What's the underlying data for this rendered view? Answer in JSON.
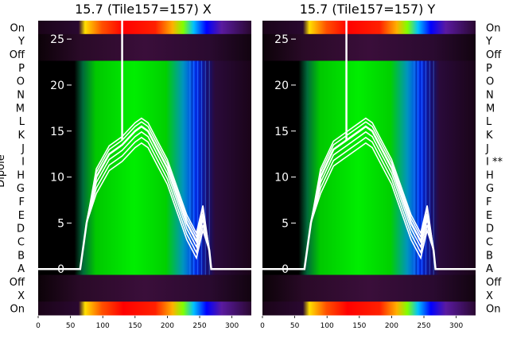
{
  "ylabel": "Dipole",
  "chart_data": [
    {
      "type": "heatmap",
      "title": "15.7 (Tile157=157) X",
      "row_labels": [
        "On",
        "Y",
        "Off",
        "P",
        "O",
        "N",
        "M",
        "L",
        "K",
        "J",
        "I",
        "H",
        "G",
        "F",
        "E",
        "D",
        "C",
        "B",
        "A",
        "Off",
        "X",
        "On"
      ],
      "xlim": [
        0,
        330
      ],
      "x_ticks": [
        0,
        50,
        100,
        150,
        200,
        250,
        300
      ],
      "ylim": [
        -5,
        27
      ],
      "y_ticks": [
        0,
        5,
        10,
        15,
        20,
        25
      ],
      "colormap": [
        "#000000",
        "#4b0082",
        "#0000ff",
        "#00ff00",
        "#ffff00",
        "#ff0000"
      ],
      "line_color": "#ffffff",
      "line_x": [
        0,
        65,
        75,
        90,
        110,
        130,
        150,
        160,
        170,
        185,
        200,
        215,
        230,
        245,
        255,
        265,
        268,
        330
      ],
      "line_y": [
        0,
        0,
        5,
        10,
        12.5,
        13.5,
        15,
        15.5,
        15,
        13,
        11,
        8,
        5,
        3,
        6,
        2,
        0,
        0
      ]
    },
    {
      "type": "heatmap",
      "title": "15.7 (Tile157=157) Y",
      "row_labels": [
        "On",
        "Y",
        "Off",
        "P",
        "O",
        "N",
        "M",
        "L",
        "K",
        "J",
        "I **",
        "H",
        "G",
        "F",
        "E",
        "D",
        "C",
        "B",
        "A",
        "Off",
        "X",
        "On"
      ],
      "xlim": [
        0,
        330
      ],
      "x_ticks": [
        0,
        50,
        100,
        150,
        200,
        250,
        300
      ],
      "ylim": [
        -5,
        27
      ],
      "y_ticks": [
        0,
        5,
        10,
        15,
        20,
        25
      ],
      "colormap": [
        "#000000",
        "#4b0082",
        "#0000ff",
        "#00ff00",
        "#ffff00",
        "#ff0000"
      ],
      "line_color": "#ffffff",
      "line_x": [
        0,
        65,
        75,
        90,
        110,
        130,
        150,
        160,
        170,
        185,
        200,
        215,
        230,
        245,
        255,
        265,
        268,
        330
      ],
      "line_y": [
        0,
        0,
        5,
        10,
        13,
        14,
        15,
        15.5,
        15,
        13,
        11,
        8,
        5,
        3,
        6,
        2,
        0,
        0
      ]
    }
  ]
}
